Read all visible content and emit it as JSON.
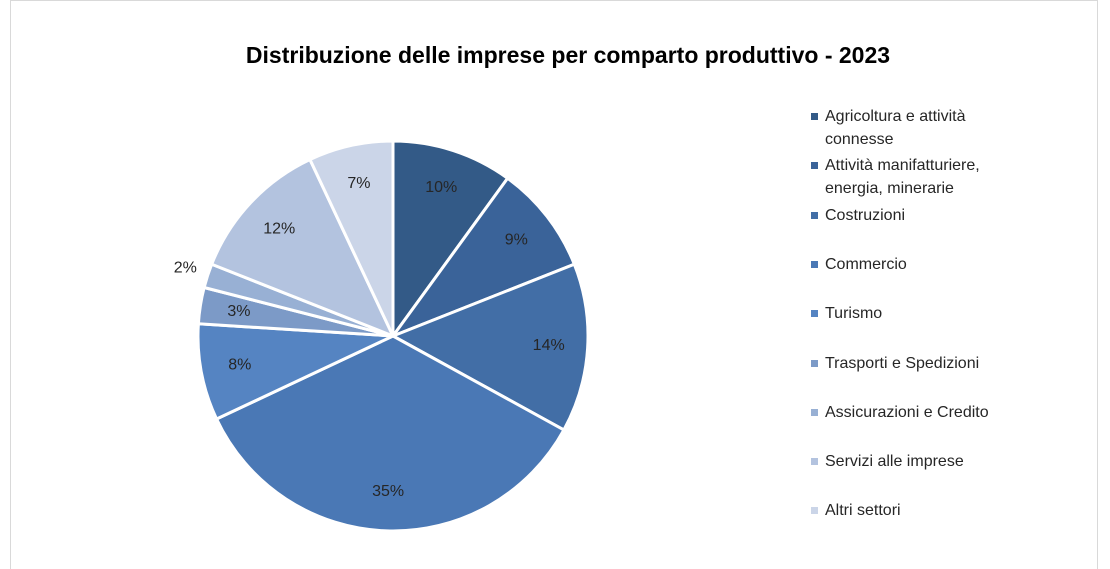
{
  "chart_data": {
    "type": "pie",
    "title": "Distribuzione delle imprese per comparto produttivo - 2023",
    "categories": [
      "Agricoltura e attività connesse",
      "Attività manifatturiere, energia, minerarie",
      "Costruzioni",
      "Commercio",
      "Turismo",
      "Trasporti e Spedizioni",
      "Assicurazioni e Credito",
      "Servizi alle imprese",
      "Altri settori"
    ],
    "values": [
      10,
      9,
      14,
      35,
      8,
      3,
      2,
      12,
      7
    ],
    "value_labels": [
      "10%",
      "9%",
      "14%",
      "35%",
      "8%",
      "3%",
      "2%",
      "12%",
      "7%"
    ],
    "colors": [
      "#335a87",
      "#3a6399",
      "#426ea6",
      "#4a78b5",
      "#5584c2",
      "#7c9ac7",
      "#98b0d4",
      "#b3c3df",
      "#cbd5e8"
    ],
    "legend": "right"
  }
}
